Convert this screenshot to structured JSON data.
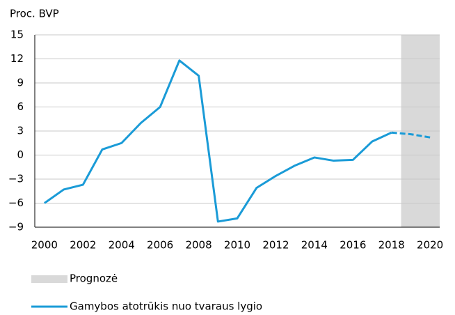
{
  "chart_data": {
    "type": "line",
    "y_axis_label": "Proc. BVP",
    "x": [
      2000,
      2001,
      2002,
      2003,
      2004,
      2005,
      2006,
      2007,
      2008,
      2009,
      2010,
      2011,
      2012,
      2013,
      2014,
      2015,
      2016,
      2017,
      2018,
      2019,
      2020
    ],
    "series": [
      {
        "name": "Gamybos atotrūkis nuo tvaraus lygio",
        "color": "#1a9bd7",
        "values": [
          -6.0,
          -4.3,
          -3.7,
          0.7,
          1.5,
          4.0,
          6.0,
          11.8,
          9.9,
          -8.3,
          -7.9,
          -4.1,
          -2.6,
          -1.3,
          -0.3,
          -0.7,
          -0.6,
          1.7,
          2.8,
          2.6,
          2.2
        ]
      }
    ],
    "forecast": {
      "label": "Prognozė",
      "xlim": [
        2018.5,
        2020.5
      ],
      "color": "#d9d9d9"
    },
    "xlim": [
      1999.5,
      2020.5
    ],
    "xticks": [
      2000,
      2002,
      2004,
      2006,
      2008,
      2010,
      2012,
      2014,
      2016,
      2018,
      2020
    ],
    "ylim": [
      -9,
      15
    ],
    "yticks": [
      {
        "value": -9,
        "label": "−9"
      },
      {
        "value": -6,
        "label": "−6"
      },
      {
        "value": -3,
        "label": "−3"
      },
      0,
      3,
      6,
      9,
      12,
      15
    ],
    "grid": true
  }
}
